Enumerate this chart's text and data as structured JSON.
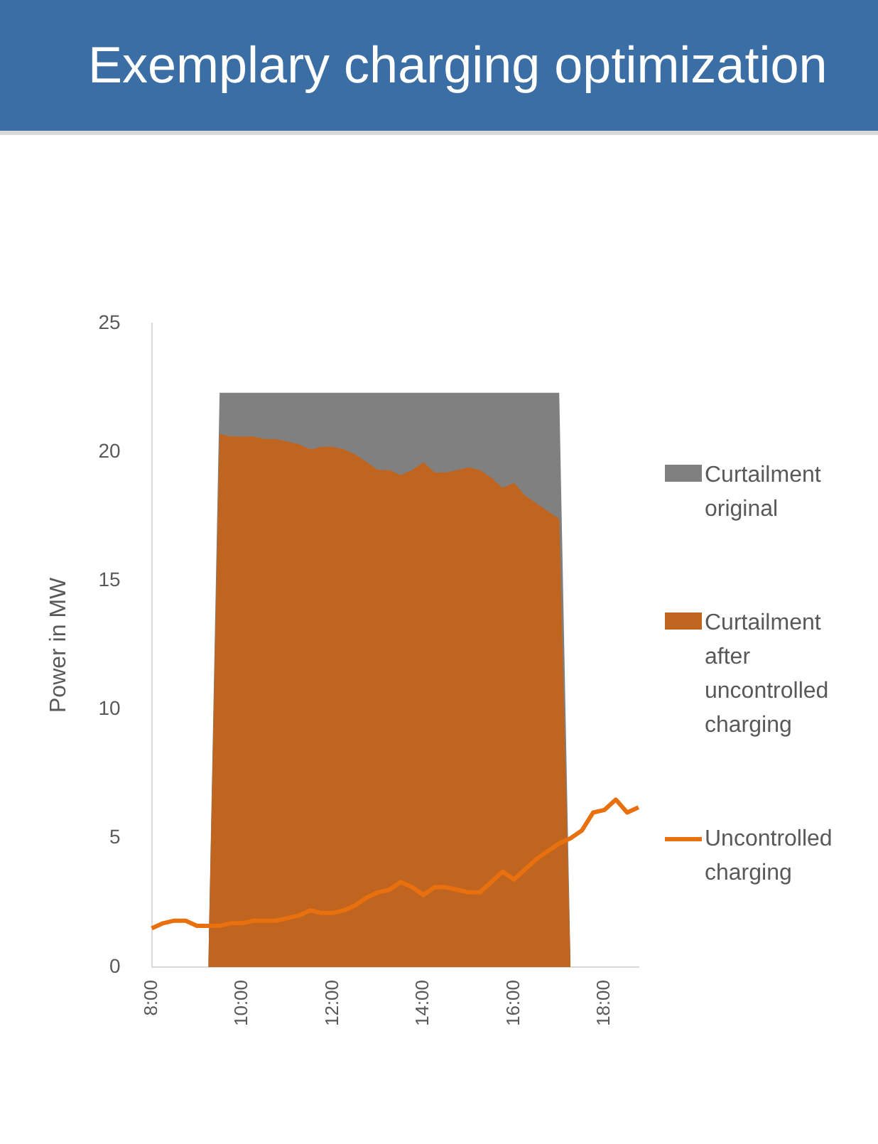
{
  "chart_data": {
    "type": "area",
    "title": "Exemplary charging optimization",
    "ylabel": "Power in MW",
    "categories": [
      "8:00",
      null,
      null,
      null,
      null,
      null,
      null,
      null,
      "10:00",
      null,
      null,
      null,
      null,
      null,
      null,
      null,
      "12:00",
      null,
      null,
      null,
      null,
      null,
      null,
      null,
      "14:00",
      null,
      null,
      null,
      null,
      null,
      null,
      null,
      "16:00",
      null,
      null,
      null,
      null,
      null,
      null,
      null,
      "18:00",
      null,
      null,
      null
    ],
    "series": [
      {
        "name": "Curtailment original",
        "color": "#808080",
        "values": [
          null,
          null,
          null,
          null,
          null,
          0,
          22.3,
          22.3,
          22.3,
          22.3,
          22.3,
          22.3,
          22.3,
          22.3,
          22.3,
          22.3,
          22.3,
          22.3,
          22.3,
          22.3,
          22.3,
          22.3,
          22.3,
          22.3,
          22.3,
          22.3,
          22.3,
          22.3,
          22.3,
          22.3,
          22.3,
          22.3,
          22.3,
          22.3,
          22.3,
          22.3,
          22.3,
          0,
          null,
          null,
          null,
          null,
          null,
          null
        ]
      },
      {
        "name": "Curtailment after uncontrolled charging",
        "color": "#c0651f",
        "values": [
          null,
          null,
          null,
          null,
          null,
          0,
          20.7,
          20.6,
          20.6,
          20.6,
          20.5,
          20.5,
          20.4,
          20.3,
          20.1,
          20.2,
          20.2,
          20.1,
          19.9,
          19.6,
          19.3,
          19.3,
          19.1,
          19.3,
          19.6,
          19.2,
          19.2,
          19.3,
          19.4,
          19.3,
          19.0,
          18.6,
          18.8,
          18.3,
          18.0,
          17.7,
          17.4,
          0,
          null,
          null,
          null,
          null,
          null,
          null
        ]
      },
      {
        "name": "Uncontrolled charging",
        "type": "line",
        "color": "#e8700e",
        "values": [
          1.5,
          1.7,
          1.8,
          1.8,
          1.6,
          1.6,
          1.6,
          1.7,
          1.7,
          1.8,
          1.8,
          1.8,
          1.9,
          2.0,
          2.2,
          2.1,
          2.1,
          2.2,
          2.4,
          2.7,
          2.9,
          3.0,
          3.3,
          3.1,
          2.8,
          3.1,
          3.1,
          3.0,
          2.9,
          2.9,
          3.3,
          3.7,
          3.4,
          3.8,
          4.2,
          4.5,
          4.8,
          5.0,
          5.3,
          6.0,
          6.1,
          6.5,
          6.0,
          6.2
        ]
      }
    ],
    "ylim": [
      0,
      25
    ],
    "yticks": [
      0,
      5,
      10,
      15,
      20,
      25
    ],
    "grid": false,
    "legend": "right",
    "marker": "none"
  }
}
